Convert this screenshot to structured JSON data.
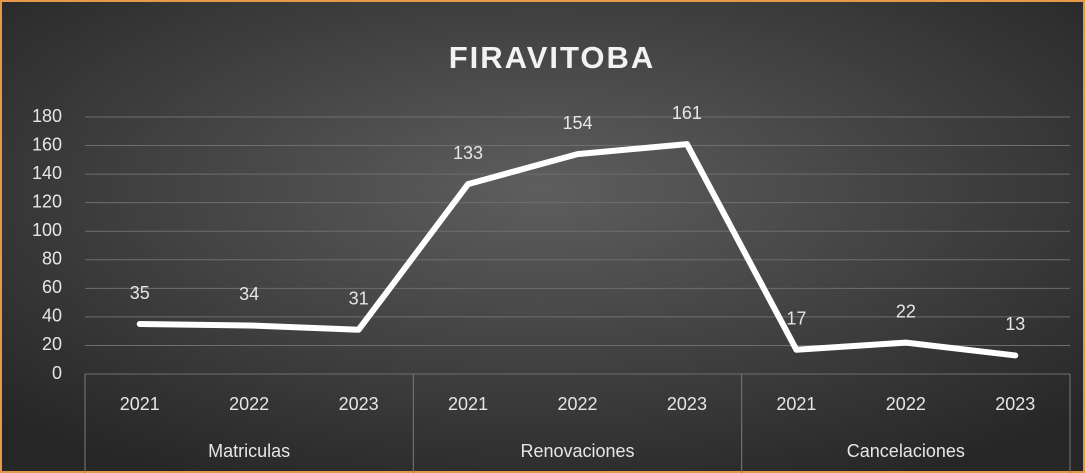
{
  "chart_data": {
    "type": "line",
    "title": "FIRAVITOBA",
    "categories": [
      "2021",
      "2022",
      "2023",
      "2021",
      "2022",
      "2023",
      "2021",
      "2022",
      "2023"
    ],
    "groups": [
      "Matriculas",
      "Renovaciones",
      "Cancelaciones"
    ],
    "values": [
      35,
      34,
      31,
      133,
      154,
      161,
      17,
      22,
      13
    ],
    "color": "#ffffff",
    "ylim": [
      0,
      180
    ],
    "yticks": [
      0,
      20,
      40,
      60,
      80,
      100,
      120,
      140,
      160,
      180
    ],
    "grid": true
  }
}
